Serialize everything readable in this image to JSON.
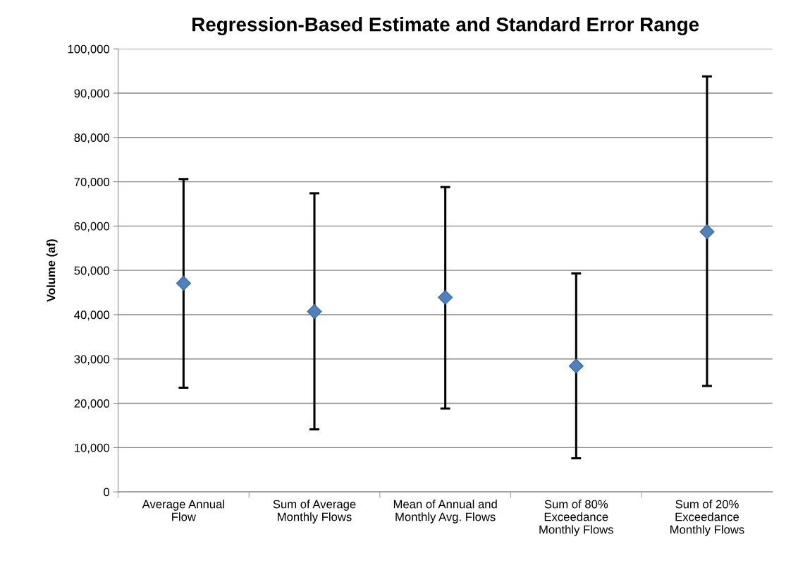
{
  "chart_data": {
    "type": "scatter",
    "title": "Regression-Based Estimate and Standard Error Range",
    "ylabel": "Volume (af)",
    "categories": [
      "Average Annual\nFlow",
      "Sum of Average\nMonthly Flows",
      "Mean of Annual and\nMonthly Avg. Flows",
      "Sum of 80%\nExceedance\nMonthly Flows",
      "Sum of 20%\nExceedance\nMonthly Flows"
    ],
    "series": [
      {
        "color": "#4f81bd",
        "values": [
          47100,
          40700,
          43900,
          28400,
          58700
        ],
        "errors": [
          [
            23500,
            70600
          ],
          [
            14100,
            67400
          ],
          [
            18800,
            68800
          ],
          [
            7600,
            49300
          ],
          [
            23900,
            93800
          ]
        ]
      }
    ],
    "ylim": [
      0,
      100000
    ],
    "yticks": [
      {
        "value": 0,
        "label": "0"
      },
      {
        "value": 10000,
        "label": "10,000"
      },
      {
        "value": 20000,
        "label": "20,000"
      },
      {
        "value": 30000,
        "label": "30,000"
      },
      {
        "value": 40000,
        "label": "40,000"
      },
      {
        "value": 50000,
        "label": "50,000"
      },
      {
        "value": 60000,
        "label": "60,000"
      },
      {
        "value": 70000,
        "label": "70,000"
      },
      {
        "value": 80000,
        "label": "80,000"
      },
      {
        "value": 90000,
        "label": "90,000"
      },
      {
        "value": 100000,
        "label": "100,000"
      }
    ],
    "grid": "y",
    "marker": "diamond",
    "legend": false
  }
}
